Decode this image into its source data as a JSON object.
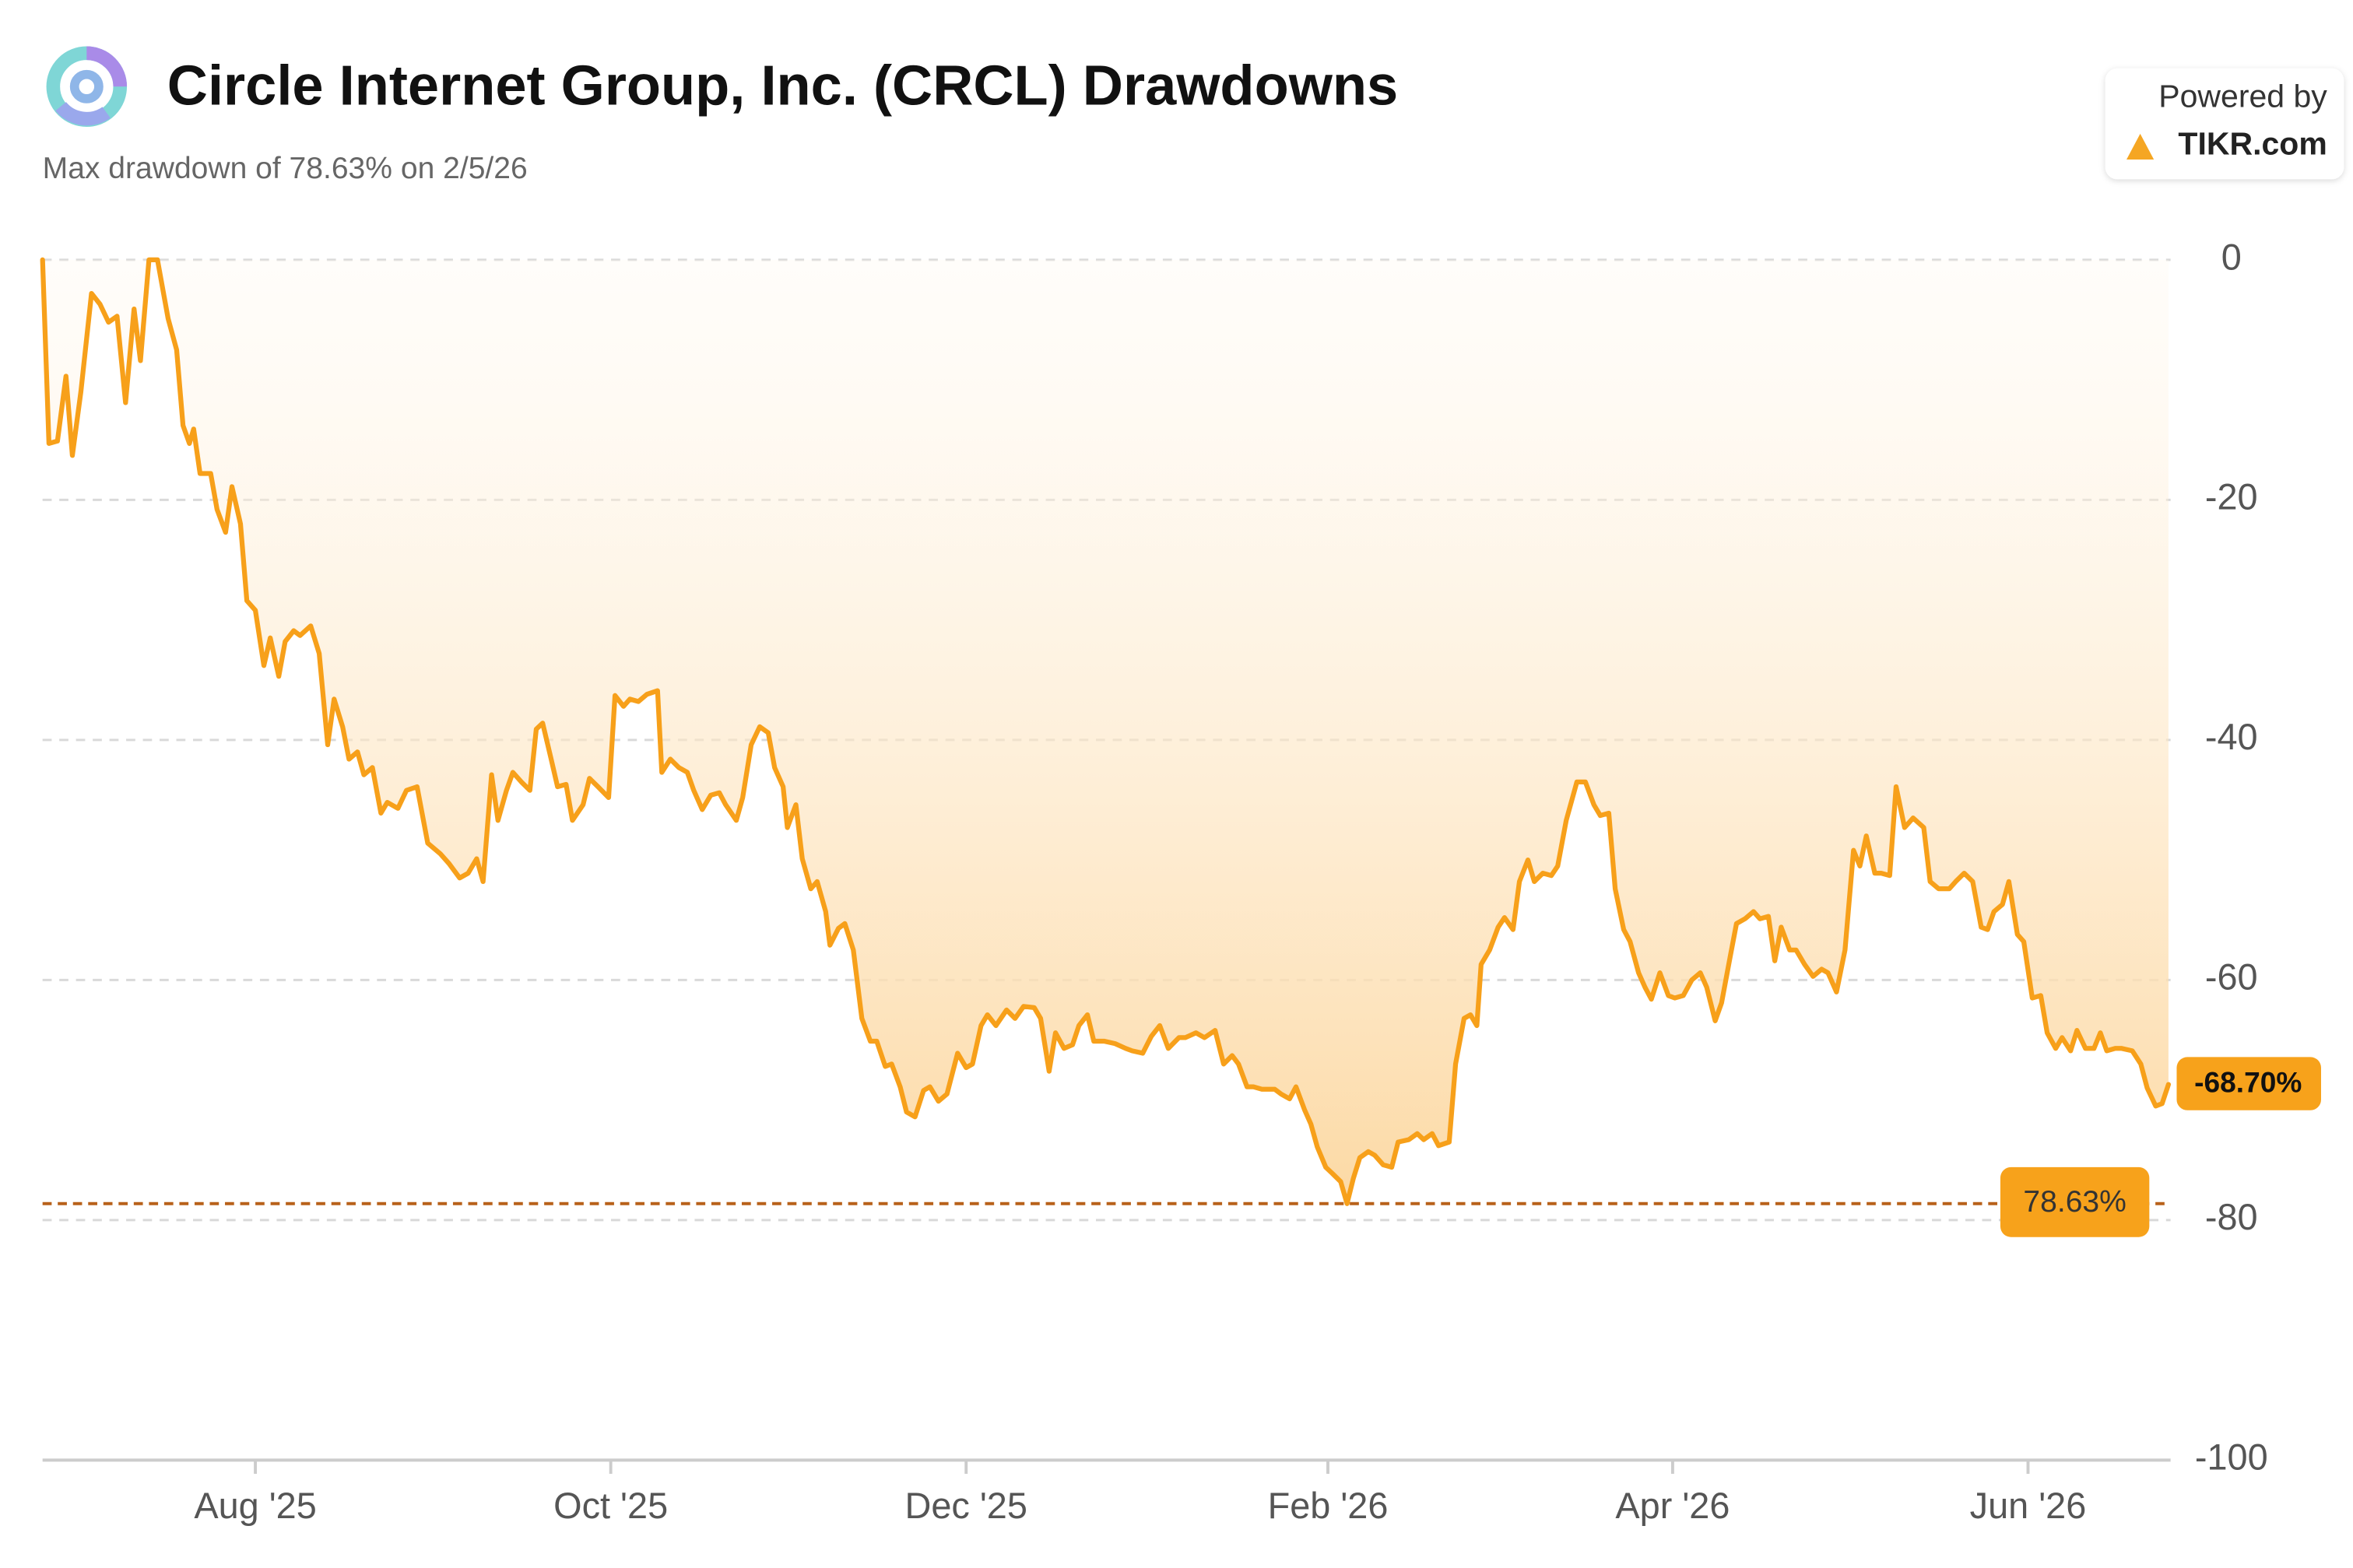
{
  "chart_data": {
    "type": "line",
    "title": "Circle Internet Group, Inc. (CRCL) Drawdowns",
    "subtitle": "Max drawdown of 78.63% on 2/5/26",
    "powered_by": "Powered by",
    "brand": "TIKR.com",
    "color": "#f7a01a",
    "grid": true,
    "xlim": [
      2025.481,
      2026.481
    ],
    "xticks": [
      {
        "value": 2025.581,
        "label": "Aug '25"
      },
      {
        "value": 2025.748,
        "label": "Oct '25"
      },
      {
        "value": 2025.915,
        "label": "Dec '25"
      },
      {
        "value": 2026.085,
        "label": "Feb '26"
      },
      {
        "value": 2026.247,
        "label": "Apr '26"
      },
      {
        "value": 2026.414,
        "label": "Jun '26"
      }
    ],
    "ylim": [
      -100,
      0
    ],
    "yticks": [
      0,
      -20,
      -40,
      -60,
      -80,
      -100
    ],
    "max_drawdown": {
      "value": -78.63,
      "label": "78.63%"
    },
    "end_label": "-68.70%",
    "x": [
      2025.481,
      2025.484,
      2025.488,
      2025.492,
      2025.495,
      2025.499,
      2025.504,
      2025.508,
      2025.512,
      2025.516,
      2025.52,
      2025.524,
      2025.527,
      2025.531,
      2025.535,
      2025.54,
      2025.544,
      2025.547,
      2025.55,
      2025.552,
      2025.555,
      2025.56,
      2025.563,
      2025.567,
      2025.57,
      2025.574,
      2025.577,
      2025.581,
      2025.585,
      2025.588,
      2025.592,
      2025.595,
      2025.599,
      2025.602,
      2025.607,
      2025.611,
      2025.615,
      2025.618,
      2025.622,
      2025.625,
      2025.629,
      2025.632,
      2025.636,
      2025.64,
      2025.643,
      2025.648,
      2025.652,
      2025.657,
      2025.662,
      2025.668,
      2025.672,
      2025.677,
      2025.681,
      2025.685,
      2025.688,
      2025.692,
      2025.695,
      2025.699,
      2025.702,
      2025.706,
      2025.71,
      2025.713,
      2025.716,
      2025.72,
      2025.723,
      2025.727,
      2025.73,
      2025.735,
      2025.738,
      2025.742,
      2025.747,
      2025.75,
      2025.754,
      2025.757,
      2025.761,
      2025.765,
      2025.77,
      2025.772,
      2025.776,
      2025.78,
      2025.784,
      2025.787,
      2025.791,
      2025.795,
      2025.799,
      2025.802,
      2025.807,
      2025.81,
      2025.814,
      2025.818,
      2025.822,
      2025.825,
      2025.829,
      2025.831,
      2025.835,
      2025.838,
      2025.842,
      2025.845,
      2025.849,
      2025.851,
      2025.855,
      2025.858,
      2025.862,
      2025.866,
      2025.87,
      2025.873,
      2025.877,
      2025.88,
      2025.884,
      2025.887,
      2025.891,
      2025.895,
      2025.898,
      2025.902,
      2025.906,
      2025.911,
      2025.915,
      2025.918,
      2025.922,
      2025.925,
      2025.929,
      2025.934,
      2025.938,
      2025.942,
      2025.947,
      2025.95,
      2025.954,
      2025.957,
      2025.961,
      2025.965,
      2025.968,
      2025.972,
      2025.975,
      2025.98,
      2025.985,
      2025.99,
      2025.993,
      2025.998,
      2026.002,
      2026.006,
      2026.01,
      2026.015,
      2026.018,
      2026.023,
      2026.027,
      2026.032,
      2026.036,
      2026.04,
      2026.043,
      2026.047,
      2026.05,
      2026.054,
      2026.06,
      2026.063,
      2026.067,
      2026.07,
      2026.074,
      2026.077,
      2026.08,
      2026.084,
      2026.087,
      2026.091,
      2026.094,
      2026.097,
      2026.1,
      2026.104,
      2026.107,
      2026.111,
      2026.115,
      2026.118,
      2026.123,
      2026.127,
      2026.13,
      2026.134,
      2026.137,
      2026.142,
      2026.145,
      2026.149,
      2026.152,
      2026.155,
      2026.157,
      2026.161,
      2026.165,
      2026.168,
      2026.172,
      2026.175,
      2026.179,
      2026.182,
      2026.186,
      2026.19,
      2026.193,
      2026.197,
      2026.202,
      2026.206,
      2026.21,
      2026.213,
      2026.217,
      2026.22,
      2026.224,
      2026.227,
      2026.231,
      2026.234,
      2026.237,
      2026.241,
      2026.245,
      2026.248,
      2026.252,
      2026.256,
      2026.26,
      2026.263,
      2026.267,
      2026.27,
      2026.274,
      2026.277,
      2026.281,
      2026.285,
      2026.288,
      2026.292,
      2026.295,
      2026.298,
      2026.302,
      2026.305,
      2026.309,
      2026.313,
      2026.317,
      2026.32,
      2026.324,
      2026.328,
      2026.332,
      2026.335,
      2026.338,
      2026.342,
      2026.345,
      2026.349,
      2026.352,
      2026.356,
      2026.36,
      2026.365,
      2026.368,
      2026.372,
      2026.377,
      2026.38,
      2026.384,
      2026.388,
      2026.392,
      2026.395,
      2026.398,
      2026.402,
      2026.405,
      2026.409,
      2026.412,
      2026.416,
      2026.42,
      2026.423,
      2026.427,
      2026.43,
      2026.434,
      2026.437,
      2026.441,
      2026.445,
      2026.448,
      2026.451,
      2026.455,
      2026.458,
      2026.463,
      2026.467,
      2026.47,
      2026.474,
      2026.477,
      2026.48
    ],
    "values": [
      0,
      -15.3,
      -15.1,
      -9.7,
      -16.3,
      -11.0,
      -2.8,
      -3.7,
      -5.2,
      -4.7,
      -11.9,
      -4.1,
      -8.4,
      0,
      0,
      -4.9,
      -7.5,
      -13.8,
      -15.3,
      -14.1,
      -17.8,
      -17.8,
      -20.8,
      -22.7,
      -18.9,
      -22.0,
      -28.4,
      -29.2,
      -33.8,
      -31.5,
      -34.7,
      -31.8,
      -30.9,
      -31.3,
      -30.5,
      -32.8,
      -40.4,
      -36.6,
      -38.9,
      -41.6,
      -41.0,
      -42.9,
      -42.3,
      -46.1,
      -45.2,
      -45.7,
      -44.2,
      -43.9,
      -48.6,
      -49.5,
      -50.3,
      -51.5,
      -51.1,
      -49.9,
      -51.8,
      -42.9,
      -46.7,
      -44.2,
      -42.7,
      -43.5,
      -44.2,
      -39.1,
      -38.6,
      -41.6,
      -43.9,
      -43.7,
      -46.7,
      -45.4,
      -43.2,
      -43.9,
      -44.8,
      -36.3,
      -37.2,
      -36.6,
      -36.8,
      -36.2,
      -35.9,
      -42.7,
      -41.6,
      -42.3,
      -42.7,
      -44.2,
      -45.8,
      -44.6,
      -44.4,
      -45.4,
      -46.7,
      -44.8,
      -40.4,
      -38.9,
      -39.4,
      -42.3,
      -43.9,
      -47.3,
      -45.4,
      -49.9,
      -52.4,
      -51.8,
      -54.3,
      -57.1,
      -55.7,
      -55.3,
      -57.5,
      -63.2,
      -65.1,
      -65.1,
      -67.2,
      -67.0,
      -68.9,
      -71.0,
      -71.4,
      -69.2,
      -68.9,
      -70.1,
      -69.5,
      -66.1,
      -67.3,
      -67.0,
      -63.8,
      -62.9,
      -63.8,
      -62.5,
      -63.2,
      -62.2,
      -62.3,
      -63.2,
      -67.6,
      -64.4,
      -65.7,
      -65.4,
      -63.8,
      -62.9,
      -65.1,
      -65.1,
      -65.3,
      -65.7,
      -65.9,
      -66.1,
      -64.7,
      -63.8,
      -65.7,
      -64.8,
      -64.8,
      -64.4,
      -64.8,
      -64.2,
      -67.0,
      -66.3,
      -67.0,
      -68.9,
      -68.9,
      -69.1,
      -69.1,
      -69.5,
      -69.9,
      -68.9,
      -70.8,
      -72.0,
      -73.9,
      -75.6,
      -76.1,
      -76.8,
      -78.63,
      -76.5,
      -74.8,
      -74.3,
      -74.6,
      -75.4,
      -75.6,
      -73.5,
      -73.3,
      -72.8,
      -73.3,
      -72.8,
      -73.8,
      -73.5,
      -67.0,
      -63.2,
      -62.9,
      -63.8,
      -58.7,
      -57.5,
      -55.6,
      -54.8,
      -55.8,
      -51.8,
      -50.0,
      -51.8,
      -51.1,
      -51.3,
      -50.5,
      -46.7,
      -43.5,
      -43.5,
      -45.4,
      -46.3,
      -46.1,
      -52.4,
      -55.8,
      -56.8,
      -59.4,
      -60.6,
      -61.6,
      -59.4,
      -61.3,
      -61.5,
      -61.3,
      -60.0,
      -59.4,
      -60.6,
      -63.4,
      -61.9,
      -58.1,
      -55.3,
      -54.9,
      -54.3,
      -54.9,
      -54.7,
      -58.4,
      -55.6,
      -57.5,
      -57.5,
      -58.7,
      -59.7,
      -59.1,
      -59.4,
      -61.0,
      -57.5,
      -49.2,
      -50.5,
      -48.0,
      -51.1,
      -51.1,
      -51.3,
      -43.9,
      -47.3,
      -46.5,
      -47.3,
      -51.8,
      -52.4,
      -52.4,
      -51.8,
      -51.1,
      -51.8,
      -55.6,
      -55.8,
      -54.3,
      -53.7,
      -51.8,
      -56.2,
      -56.8,
      -61.5,
      -61.3,
      -64.4,
      -65.7,
      -64.8,
      -65.9,
      -64.2,
      -65.7,
      -65.7,
      -64.4,
      -65.9,
      -65.7,
      -65.7,
      -65.9,
      -67.0,
      -69.0,
      -70.5,
      -70.3,
      -68.7
    ]
  }
}
